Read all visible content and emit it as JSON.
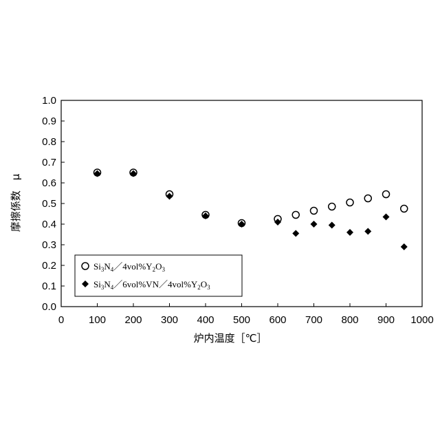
{
  "chart_data": {
    "type": "scatter",
    "xlabel": "炉内温度［℃］",
    "ylabel": "摩擦係数　μ",
    "xlim": [
      0,
      1000
    ],
    "ylim": [
      0,
      1.0
    ],
    "x_ticks": [
      "0",
      "100",
      "200",
      "300",
      "400",
      "500",
      "600",
      "700",
      "800",
      "900",
      "1000"
    ],
    "y_ticks": [
      "0.0",
      "0.1",
      "0.2",
      "0.3",
      "0.4",
      "0.5",
      "0.6",
      "0.7",
      "0.8",
      "0.9",
      "1.0"
    ],
    "grid": false,
    "legend_position": "bottom-left",
    "series": [
      {
        "name": "Si3N4／4vol%Y2O3",
        "legend": {
          "p1": "Si",
          "s1": "3",
          "p2": "N",
          "s2": "4",
          "p3": "／4vol%Y",
          "s3": "2",
          "p4": "O",
          "s4": "3"
        },
        "marker": "open-circle",
        "color": "#000000",
        "x": [
          100,
          200,
          300,
          400,
          500,
          600,
          650,
          700,
          750,
          800,
          850,
          900,
          950
        ],
        "y": [
          0.65,
          0.65,
          0.545,
          0.445,
          0.405,
          0.425,
          0.445,
          0.465,
          0.485,
          0.505,
          0.525,
          0.545,
          0.475
        ]
      },
      {
        "name": "Si3N4／6vol%VN／4vol%Y2O3",
        "legend": {
          "p1": "Si",
          "s1": "3",
          "p2": "N",
          "s2": "4",
          "p3": "／6vol%VN／4vol%Y",
          "s3": "2",
          "p4": "O",
          "s4": "3"
        },
        "marker": "filled-diamond",
        "color": "#000000",
        "x": [
          100,
          200,
          300,
          400,
          500,
          600,
          650,
          700,
          750,
          800,
          850,
          900,
          950
        ],
        "y": [
          0.645,
          0.645,
          0.535,
          0.44,
          0.4,
          0.41,
          0.355,
          0.4,
          0.395,
          0.36,
          0.365,
          0.435,
          0.29
        ]
      }
    ]
  }
}
